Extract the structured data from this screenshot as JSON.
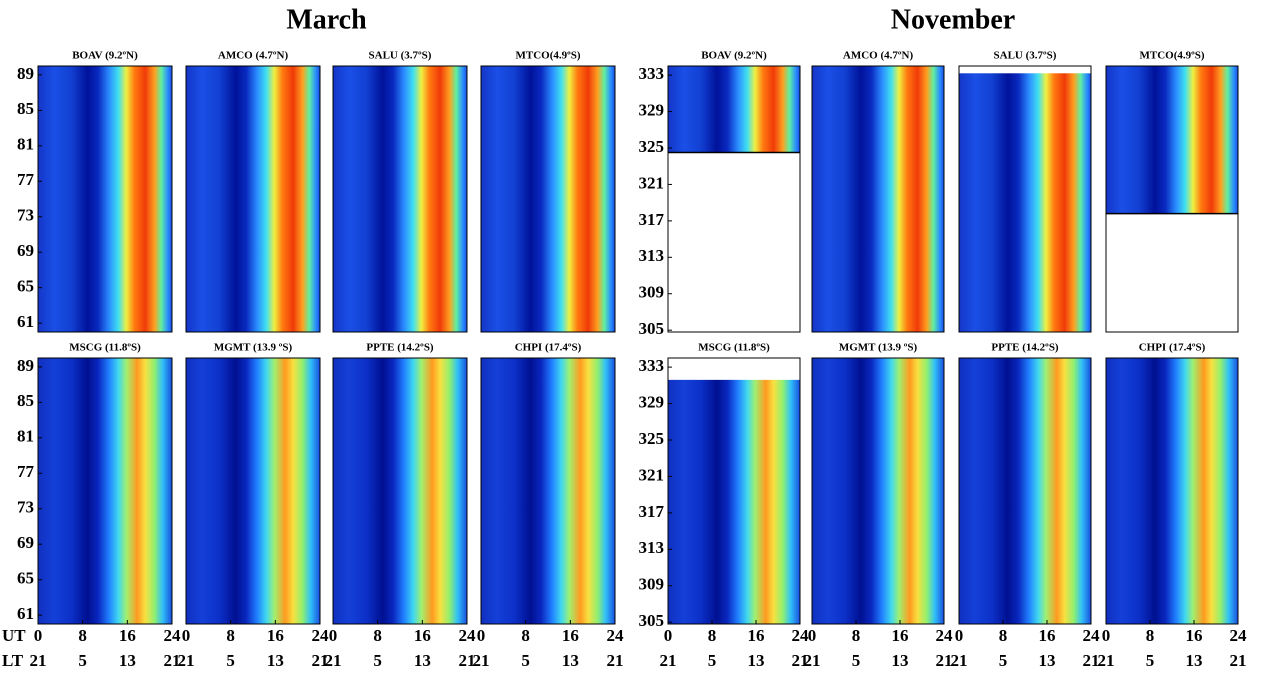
{
  "chart_data": {
    "type": "heatmap",
    "xlim": [
      0,
      24
    ],
    "xticks": [
      0,
      8,
      16,
      24
    ],
    "lt_ticks": [
      {
        "value": 0,
        "label": "21"
      },
      {
        "value": 8,
        "label": "5"
      },
      {
        "value": 16,
        "label": "13"
      },
      {
        "value": 24,
        "label": "21"
      }
    ],
    "axis_labels": [
      "UT",
      "LT"
    ],
    "groups": [
      {
        "title": "March",
        "ylim": [
          60,
          90
        ],
        "yticks": [
          61,
          65,
          69,
          73,
          77,
          81,
          85,
          89
        ],
        "rows": [
          [
            {
              "title": "BOAV (9.2ºN)"
            },
            {
              "title": "AMCO (4.7ºN)"
            },
            {
              "title": "SALU (3.7ºS)"
            },
            {
              "title": "MTCO(4.9ºS)"
            }
          ],
          [
            {
              "title": "MSCG (11.8ºS)"
            },
            {
              "title": "MGMT (13.9 ºS)"
            },
            {
              "title": "PPTE (14.2ºS)"
            },
            {
              "title": "CHPI (17.4ºS)"
            }
          ]
        ]
      },
      {
        "title": "November",
        "ylim": [
          304.8,
          334
        ],
        "yticks": [
          305,
          309,
          313,
          317,
          321,
          325,
          329,
          333
        ],
        "rows": [
          [
            {
              "title": "BOAV (9.2ºN)",
              "coverage_ylim": [
                324.5,
                334
              ]
            },
            {
              "title": "AMCO (4.7ºN)"
            },
            {
              "title": "SALU (3.7ºS)",
              "coverage_ylim": [
                304.8,
                333.2
              ]
            },
            {
              "title": "MTCO(4.9ºS)",
              "coverage_ylim": [
                317.8,
                334
              ]
            }
          ],
          [
            {
              "title": "MSCG (11.8ºS)",
              "coverage_ylim": [
                304.8,
                331.6
              ]
            },
            {
              "title": "MGMT (13.9 ºS)"
            },
            {
              "title": "PPTE (14.2ºS)"
            },
            {
              "title": "CHPI (17.4ºS)"
            }
          ]
        ]
      }
    ]
  }
}
